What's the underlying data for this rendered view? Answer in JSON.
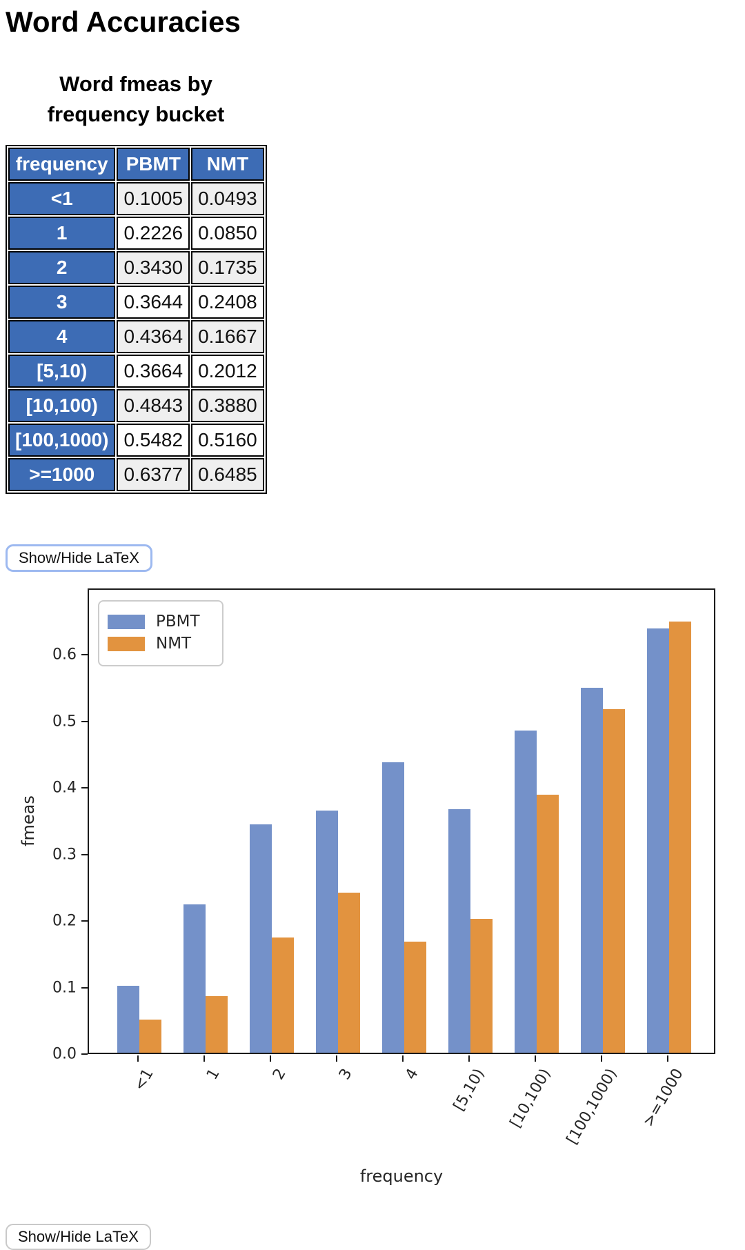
{
  "page": {
    "title": "Word Accuracies"
  },
  "table": {
    "caption": "Word fmeas by frequency bucket",
    "columns": [
      "frequency",
      "PBMT",
      "NMT"
    ],
    "rows": [
      [
        "<1",
        "0.1005",
        "0.0493"
      ],
      [
        "1",
        "0.2226",
        "0.0850"
      ],
      [
        "2",
        "0.3430",
        "0.1735"
      ],
      [
        "3",
        "0.3644",
        "0.2408"
      ],
      [
        "4",
        "0.4364",
        "0.1667"
      ],
      [
        "[5,10)",
        "0.3664",
        "0.2012"
      ],
      [
        "[10,100)",
        "0.4843",
        "0.3880"
      ],
      [
        "[100,1000)",
        "0.5482",
        "0.5160"
      ],
      [
        ">=1000",
        "0.6377",
        "0.6485"
      ]
    ],
    "header_bg": "#3D6CB5",
    "alt_row_bg": "#EFEFEF"
  },
  "buttons": {
    "show_hide_latex": "Show/Hide LaTeX"
  },
  "chart_data": {
    "type": "bar",
    "title": "",
    "xlabel": "frequency",
    "ylabel": "fmeas",
    "categories": [
      "<1",
      "1",
      "2",
      "3",
      "4",
      "[5,10)",
      "[10,100)",
      "[100,1000)",
      ">=1000"
    ],
    "series": [
      {
        "name": "PBMT",
        "color": "#7491C9",
        "values": [
          0.1005,
          0.2226,
          0.343,
          0.3644,
          0.4364,
          0.3664,
          0.4843,
          0.5482,
          0.6377
        ]
      },
      {
        "name": "NMT",
        "color": "#E2933F",
        "values": [
          0.0493,
          0.085,
          0.1735,
          0.2408,
          0.1667,
          0.2012,
          0.388,
          0.516,
          0.6485
        ]
      }
    ],
    "ylim": [
      0,
      0.7
    ],
    "yticks": [
      0.0,
      0.1,
      0.2,
      0.3,
      0.4,
      0.5,
      0.6
    ],
    "xtick_rotation_deg": 60,
    "legend_position": "upper left",
    "grid": false
  }
}
